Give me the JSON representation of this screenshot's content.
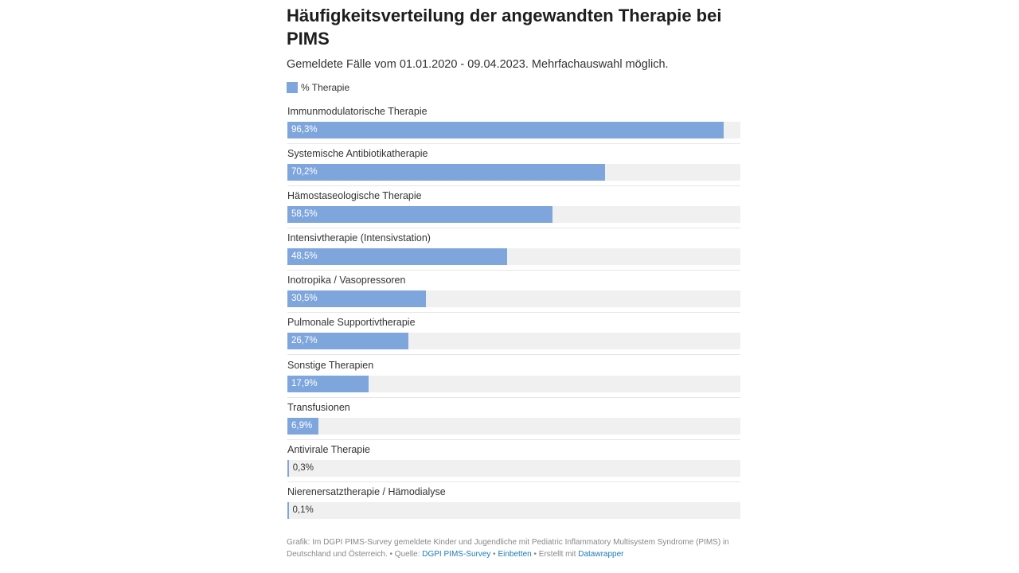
{
  "chart_data": {
    "type": "bar",
    "orientation": "horizontal",
    "title": "Häufigkeitsverteilung der angewandten Therapie bei PIMS",
    "subtitle": "Gemeldete Fälle vom 01.01.2020 - 09.04.2023. Mehrfachauswahl möglich.",
    "legend": {
      "position": "top-left",
      "entries": [
        "% Therapie"
      ]
    },
    "xlim": [
      0,
      100
    ],
    "bar_color": "#7ea6dd",
    "track_color": "#f0f0f0",
    "categories": [
      "Immunmodulatorische Therapie",
      "Systemische Antibiotikatherapie",
      "Hämostaseologische Therapie",
      "Intensivtherapie (Intensivstation)",
      "Inotropika / Vasopressoren",
      "Pulmonale Supportivtherapie",
      "Sonstige Therapien",
      "Transfusionen",
      "Antivirale Therapie",
      "Nierenersatztherapie / Hämodialyse"
    ],
    "series": [
      {
        "name": "% Therapie",
        "values": [
          96.3,
          70.2,
          58.5,
          48.5,
          30.5,
          26.7,
          17.9,
          6.9,
          0.3,
          0.1
        ],
        "labels": [
          "96,3%",
          "70,2%",
          "58,5%",
          "48,5%",
          "30,5%",
          "26,7%",
          "17,9%",
          "6,9%",
          "0,3%",
          "0,1%"
        ]
      }
    ]
  },
  "footer": {
    "text": "Grafik: Im DGPI PIMS-Survey gemeldete Kinder und Jugendliche mit Pediatric Inflammatory Multisystem Syndrome (PIMS) in Deutschland und Österreich. • Quelle: ",
    "source_link": "DGPI PIMS-Survey",
    "separator": " • ",
    "embed_link": "Einbetten",
    "created_with": " • Erstellt mit ",
    "datawrapper_link": "Datawrapper"
  }
}
